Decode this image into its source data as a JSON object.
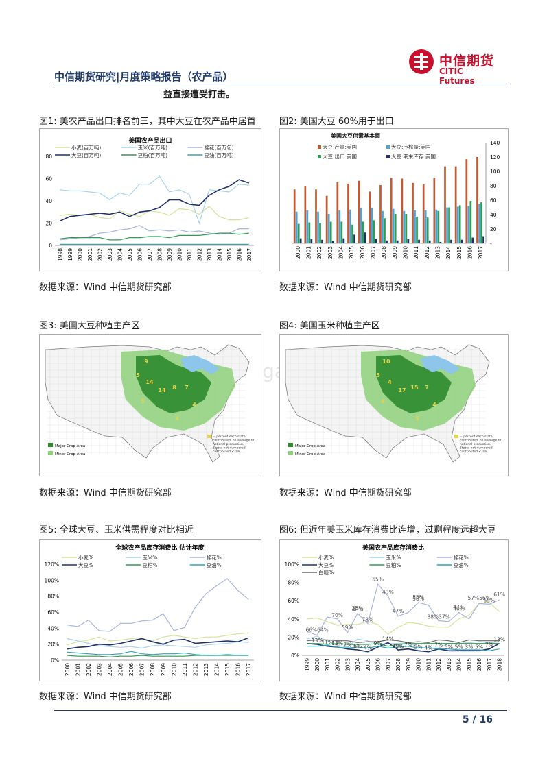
{
  "header": {
    "title": "中信期货研究|月度策略报告（农产品）",
    "logo_cn": "中信期货",
    "logo_en": "CITIC Futures"
  },
  "intro_text": "益直接遭受打击。",
  "figures": {
    "fig1": {
      "caption": "图1: 美农产品出口排名前三，其中大豆在农产品中居首",
      "source": "数据来源：Wind 中信期货研究部"
    },
    "fig2": {
      "caption": "图2: 美国大豆 60%用于出口",
      "source": "数据来源：Wind 中信期货研究部"
    },
    "fig3": {
      "caption": "图3: 美国大豆种植主产区",
      "source": "数据来源：Wind 中信期货研究部",
      "legend": [
        "Major Crop Area",
        "Minor Crop Area"
      ],
      "note": "= percent each state contributed, on average to national production. States not numbered contributed < 1%.",
      "labels": [
        "9",
        "5",
        "14",
        "14",
        "8",
        "7",
        "5",
        "4",
        "4"
      ]
    },
    "fig4": {
      "caption": "图4: 美国玉米种植主产区",
      "source": "数据来源：Wind 中信期货研究部",
      "legend": [
        "Major Crop Area",
        "Minor Crop Area"
      ],
      "note": "= percent each state contributed, on average to national production. States not numbered contributed < 1%.",
      "labels": [
        "10",
        "5",
        "4",
        "17",
        "15",
        "7",
        "4",
        "4",
        "5"
      ]
    },
    "fig5": {
      "caption": "图5: 全球大豆、玉米供需程度对比相近",
      "source": "数据来源：Wind 中信期货研究部"
    },
    "fig6": {
      "caption": "图6: 但近年美玉米库存消费比连增，过剩程度远超大豆",
      "source": "数据来源：Wind 中信期货研究部"
    }
  },
  "watermark": "baogao",
  "page_number": "5 / 16",
  "colors": {
    "navy": "#1f3a6a",
    "red": "#c8102e"
  },
  "chart_data": [
    {
      "type": "line",
      "title": "美国农产品出口",
      "x": [
        "1998",
        "1999",
        "2000",
        "2001",
        "2002",
        "2003",
        "2004",
        "2005",
        "2006",
        "2007",
        "2008",
        "2009",
        "2010",
        "2011",
        "2012",
        "2013",
        "2014",
        "2015",
        "2016",
        "2017"
      ],
      "ylim": [
        0,
        80
      ],
      "yticks": [
        "0",
        "20",
        "40",
        "60",
        "80"
      ],
      "series": [
        {
          "name": "小麦(百万吨)",
          "color": "#d6e29a",
          "values": [
            27,
            28,
            27,
            28,
            25,
            24,
            31,
            28,
            26,
            31,
            30,
            27,
            33,
            32,
            28,
            35,
            26,
            23,
            23,
            25
          ]
        },
        {
          "name": "玉米(百万吨)",
          "color": "#a9d3ee",
          "values": [
            50,
            49,
            49,
            48,
            47,
            41,
            47,
            45,
            55,
            55,
            62,
            48,
            50,
            46,
            20,
            50,
            49,
            48,
            55,
            54
          ]
        },
        {
          "name": "棉花(百万包)",
          "color": "#a8b4e0",
          "values": [
            5,
            6,
            7,
            8,
            11,
            12,
            14,
            15,
            18,
            13,
            14,
            13,
            14,
            12,
            13,
            11,
            10,
            11,
            15,
            15
          ]
        },
        {
          "name": "大豆(百万吨)",
          "color": "#1f2f6a",
          "values": [
            22,
            26,
            27,
            28,
            29,
            28,
            30,
            26,
            30,
            31,
            34,
            41,
            41,
            37,
            36,
            45,
            50,
            53,
            59,
            56
          ]
        },
        {
          "name": "豆粕(百万吨)",
          "color": "#2e9b50",
          "values": [
            6,
            7,
            7,
            7,
            7,
            5,
            5,
            7,
            7,
            8,
            8,
            7,
            9,
            9,
            9,
            10,
            11,
            11,
            10,
            11
          ]
        },
        {
          "name": "豆油(百万吨)",
          "color": "#2aa7b3",
          "values": [
            1,
            1,
            1,
            1,
            1,
            1,
            1,
            1,
            1,
            1,
            1,
            1,
            1,
            1,
            1,
            1,
            1,
            1,
            1,
            1
          ]
        }
      ]
    },
    {
      "type": "bar",
      "title": "美国大豆供需基本面",
      "categories": [
        "2000",
        "2001",
        "2002",
        "2003",
        "2004",
        "2005",
        "2006",
        "2007",
        "2008",
        "2009",
        "2010",
        "2011",
        "2012",
        "2013",
        "2014",
        "2015",
        "2016",
        "2017"
      ],
      "ylim": [
        0,
        140
      ],
      "yticks": [
        "-",
        "20",
        "40",
        "60",
        "80",
        "100",
        "120",
        "140"
      ],
      "series": [
        {
          "name": "大豆:产量:美国",
          "color": "#c65a2e",
          "values": [
            75,
            79,
            75,
            66,
            85,
            83,
            87,
            72,
            81,
            91,
            90,
            84,
            82,
            91,
            107,
            107,
            117,
            120
          ]
        },
        {
          "name": "大豆:压榨量:美国",
          "color": "#4aa3df",
          "values": [
            44,
            46,
            44,
            41,
            46,
            47,
            49,
            49,
            45,
            48,
            45,
            46,
            46,
            47,
            50,
            51,
            52,
            55
          ]
        },
        {
          "name": "大豆:出口:美国",
          "color": "#2e9b50",
          "values": [
            27,
            29,
            28,
            30,
            30,
            26,
            30,
            32,
            35,
            41,
            41,
            37,
            36,
            45,
            50,
            53,
            59,
            57
          ]
        },
        {
          "name": "大豆:期末库存:美国",
          "color": "#1f2f6a",
          "values": [
            7,
            6,
            5,
            3,
            7,
            12,
            15,
            6,
            4,
            4,
            6,
            5,
            4,
            2,
            5,
            5,
            8,
            10
          ]
        }
      ]
    },
    {
      "type": "line",
      "title": "全球农产品库存消费比 估计年度",
      "x": [
        "2000",
        "2001",
        "2002",
        "2003",
        "2004",
        "2005",
        "2006",
        "2007",
        "2008",
        "2009",
        "2010",
        "2011",
        "2012",
        "2013",
        "2014",
        "2015",
        "2016",
        "2017"
      ],
      "ylim": [
        0,
        120
      ],
      "yticks": [
        "0%",
        "20%",
        "40%",
        "60%",
        "80%",
        "100%",
        "120%"
      ],
      "series": [
        {
          "name": "小麦%",
          "color": "#d6e29a",
          "values": [
            19,
            23,
            25,
            29,
            24,
            25,
            27,
            26,
            24,
            29,
            31,
            29,
            27,
            29,
            29,
            31,
            33,
            34
          ]
        },
        {
          "name": "玉米%",
          "color": "#a9d3ee",
          "values": [
            27,
            24,
            21,
            18,
            17,
            16,
            17,
            15,
            18,
            19,
            18,
            17,
            16,
            19,
            20,
            21,
            23,
            22
          ]
        },
        {
          "name": "棉花%",
          "color": "#a8b4e0",
          "values": [
            44,
            42,
            50,
            37,
            36,
            46,
            46,
            49,
            50,
            58,
            37,
            41,
            66,
            83,
            93,
            102,
            87,
            76
          ]
        },
        {
          "name": "大豆%",
          "color": "#1f2f6a",
          "values": [
            14,
            16,
            17,
            20,
            19,
            21,
            24,
            27,
            23,
            20,
            25,
            26,
            21,
            22,
            23,
            24,
            23,
            28
          ]
        },
        {
          "name": "豆粕%",
          "color": "#2e9b50",
          "values": [
            6,
            5,
            5,
            5,
            4,
            5,
            5,
            6,
            5,
            5,
            5,
            5,
            6,
            6,
            6,
            6,
            6,
            6
          ]
        },
        {
          "name": "豆油%",
          "color": "#2aa7b3",
          "values": [
            10,
            9,
            8,
            7,
            7,
            8,
            11,
            8,
            7,
            8,
            8,
            9,
            7,
            6,
            6,
            7,
            6,
            6
          ]
        }
      ]
    },
    {
      "type": "line",
      "title": "美国农产品库存消费比",
      "x": [
        "1999",
        "2000",
        "2001",
        "2002",
        "2003",
        "2004",
        "2005",
        "2006",
        "2007",
        "2008",
        "2009",
        "2010",
        "2011",
        "2012",
        "2013",
        "2014",
        "2015",
        "2016",
        "2017",
        "2018"
      ],
      "ylim": [
        0,
        100
      ],
      "yticks": [
        "0%",
        "20%",
        "40%",
        "60%",
        "80%",
        "100%"
      ],
      "series": [
        {
          "name": "小麦%",
          "color": "#d6e29a",
          "values": [
            40,
            41,
            37,
            33,
            34,
            34,
            37,
            34,
            23,
            31,
            36,
            35,
            32,
            31,
            31,
            40,
            44,
            57,
            58,
            48
          ]
        },
        {
          "name": "玉米%",
          "color": "#a9d3ee",
          "values": [
            18,
            21,
            16,
            11,
            9,
            18,
            16,
            12,
            13,
            13,
            14,
            9,
            8,
            8,
            13,
            13,
            14,
            15,
            14,
            13
          ]
        },
        {
          "name": "棉花%",
          "color": "#a8b4e0",
          "values": [
            26,
            22,
            42,
            40,
            25,
            46,
            35,
            78,
            65,
            43,
            47,
            58,
            55,
            38,
            37,
            47,
            40,
            57,
            56,
            61
          ]
        },
        {
          "name": "大豆%",
          "color": "#1f2f6a",
          "values": [
            13,
            12,
            10,
            9,
            7,
            6,
            4,
            9,
            14,
            6,
            7,
            5,
            4,
            7,
            5,
            5,
            5,
            5,
            7,
            13
          ]
        },
        {
          "name": "豆粕%",
          "color": "#2e9b50",
          "values": [
            13,
            13,
            12,
            13,
            12,
            12,
            12,
            13,
            10,
            12,
            13,
            13,
            13,
            13,
            13,
            13,
            13,
            13,
            13,
            13
          ]
        },
        {
          "name": "豆油%",
          "color": "#2aa7b3",
          "values": [
            10,
            10,
            11,
            9,
            8,
            9,
            8,
            10,
            8,
            9,
            10,
            8,
            8,
            7,
            7,
            6,
            6,
            6,
            5,
            7
          ]
        },
        {
          "name": "白糖%",
          "color": "#6b6b6b",
          "values": [
            16,
            17,
            17,
            16,
            16,
            14,
            15,
            15,
            17,
            16,
            14,
            15,
            14,
            17,
            16,
            14,
            17,
            16,
            16,
            16
          ]
        }
      ],
      "data_labels": [
        {
          "text": "66%64%",
          "series": "棉花%"
        },
        {
          "text": "70%",
          "series": "棉花%"
        },
        {
          "text": "59%",
          "series": "棉花%"
        },
        {
          "text": "46%",
          "series": "棉花%"
        },
        {
          "text": "35%",
          "series": "棉花%"
        },
        {
          "text": "78%",
          "series": "棉花%"
        },
        {
          "text": "65%",
          "series": "棉花%"
        },
        {
          "text": "43%",
          "series": "棉花%"
        },
        {
          "text": "47%",
          "series": "棉花%"
        },
        {
          "text": "58%",
          "series": "棉花%"
        },
        {
          "text": "55%",
          "series": "棉花%"
        },
        {
          "text": "38%37%",
          "series": "棉花%"
        },
        {
          "text": "47%",
          "series": "棉花%"
        },
        {
          "text": "40%",
          "series": "棉花%"
        },
        {
          "text": "57%56%",
          "series": "棉花%"
        },
        {
          "text": "65%",
          "series": "棉花%"
        },
        {
          "text": "61%",
          "series": "棉花%"
        },
        {
          "text": "13%",
          "series": "大豆%"
        },
        {
          "text": "11%",
          "series": "大豆%"
        },
        {
          "text": "13%",
          "series": "大豆%"
        },
        {
          "text": "7%",
          "series": "大豆%"
        },
        {
          "text": "6%",
          "series": "大豆%"
        },
        {
          "text": "4%",
          "series": "大豆%"
        },
        {
          "text": "9%",
          "series": "大豆%"
        },
        {
          "text": "14%",
          "series": "大豆%"
        },
        {
          "text": "19%",
          "series": "大豆%"
        },
        {
          "text": "7%",
          "series": "大豆%"
        },
        {
          "text": "5%",
          "series": "大豆%"
        },
        {
          "text": "4%",
          "series": "大豆%"
        },
        {
          "text": "7%",
          "series": "大豆%"
        },
        {
          "text": "5%",
          "series": "大豆%"
        },
        {
          "text": "5%",
          "series": "大豆%"
        },
        {
          "text": "3%",
          "series": "大豆%"
        },
        {
          "text": "5%",
          "series": "大豆%"
        },
        {
          "text": "7%",
          "series": "大豆%"
        },
        {
          "text": "13%",
          "series": "大豆%"
        }
      ]
    }
  ]
}
